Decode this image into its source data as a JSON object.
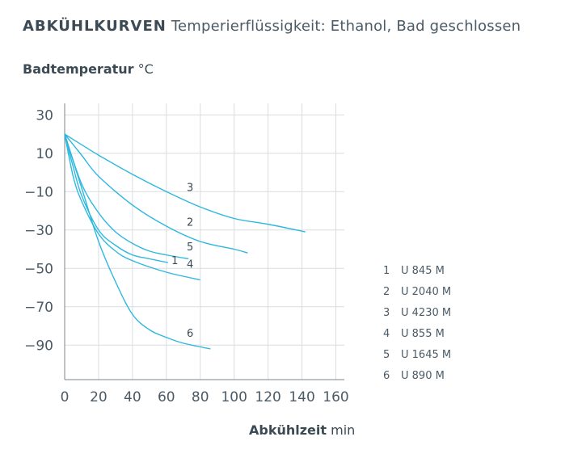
{
  "title": {
    "bold": "ABKÜHLKURVEN",
    "sub": "Temperierflüssigkeit: Ethanol, Bad geschlossen"
  },
  "yaxis": {
    "label": "Badtemperatur",
    "unit": "°C"
  },
  "xaxis": {
    "label": "Abkühlzeit",
    "unit": "min"
  },
  "chart_data": {
    "type": "line",
    "title": "ABKÜHLKURVEN Temperierflüssigkeit: Ethanol, Bad geschlossen",
    "xlabel": "Abkühlzeit min",
    "ylabel": "Badtemperatur °C",
    "xlim": [
      0,
      165
    ],
    "ylim": [
      -108,
      36
    ],
    "xticks": [
      0,
      20,
      40,
      60,
      80,
      100,
      120,
      140,
      160
    ],
    "yticks": [
      30,
      10,
      -10,
      -30,
      -50,
      -70,
      -90
    ],
    "ytick_labels": [
      "30",
      "10",
      "−10",
      "−30",
      "−50",
      "−70",
      "−90"
    ],
    "grid": true,
    "line_color": "#2fb8df",
    "series": [
      {
        "name": "1",
        "model": "U 845 M",
        "x": [
          0,
          5,
          10,
          20,
          30,
          40,
          50,
          61
        ],
        "y": [
          20,
          3,
          -12,
          -30,
          -38,
          -43,
          -45,
          -47
        ]
      },
      {
        "name": "2",
        "model": "U 2040 M",
        "x": [
          0,
          10,
          20,
          40,
          60,
          80,
          100,
          108
        ],
        "y": [
          20,
          9,
          -2,
          -17,
          -28,
          -36,
          -40,
          -42
        ]
      },
      {
        "name": "3",
        "model": "U 4230 M",
        "x": [
          0,
          20,
          40,
          60,
          80,
          100,
          120,
          142
        ],
        "y": [
          20,
          9,
          -1,
          -10,
          -18,
          -24,
          -27,
          -31
        ]
      },
      {
        "name": "4",
        "model": "U 855 M",
        "x": [
          0,
          5,
          10,
          20,
          30,
          40,
          60,
          80
        ],
        "y": [
          20,
          -2,
          -15,
          -32,
          -41,
          -46,
          -52,
          -56
        ]
      },
      {
        "name": "5",
        "model": "U 1645 M",
        "x": [
          0,
          10,
          20,
          30,
          40,
          50,
          60,
          73
        ],
        "y": [
          20,
          -6,
          -21,
          -31,
          -37,
          -41,
          -43,
          -45
        ]
      },
      {
        "name": "6",
        "model": "U 890 M",
        "x": [
          0,
          10,
          20,
          30,
          40,
          50,
          60,
          70,
          86
        ],
        "y": [
          20,
          -8,
          -36,
          -57,
          -74,
          -82,
          -86,
          -89,
          -92
        ]
      }
    ],
    "curve_labels": [
      {
        "series": "1",
        "text": "1",
        "x": 65,
        "y": -46
      },
      {
        "series": "2",
        "text": "2",
        "x": 74,
        "y": -26
      },
      {
        "series": "3",
        "text": "3",
        "x": 74,
        "y": -8
      },
      {
        "series": "4",
        "text": "4",
        "x": 74,
        "y": -48
      },
      {
        "series": "5",
        "text": "5",
        "x": 74,
        "y": -39
      },
      {
        "series": "6",
        "text": "6",
        "x": 74,
        "y": -84
      }
    ]
  },
  "legend": [
    {
      "num": "1",
      "model": "U 845 M"
    },
    {
      "num": "2",
      "model": "U 2040 M"
    },
    {
      "num": "3",
      "model": "U 4230 M"
    },
    {
      "num": "4",
      "model": "U 855 M"
    },
    {
      "num": "5",
      "model": "U 1645 M"
    },
    {
      "num": "6",
      "model": "U 890 M"
    }
  ]
}
